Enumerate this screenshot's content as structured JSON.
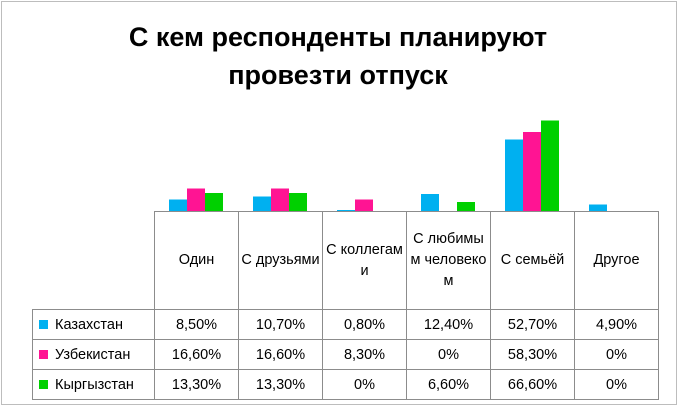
{
  "chart_data": {
    "type": "bar",
    "title_lines": [
      "С кем респонденты планируют",
      "провезти отпуск"
    ],
    "categories": [
      "Один",
      "С друзьями",
      "С коллегами",
      "С любимым человеком",
      "С семьёй",
      "Другое"
    ],
    "category_display": [
      "Один",
      "С друзьями",
      "С коллегам и",
      "С любимым человеко м",
      "С семьёй",
      "Другое"
    ],
    "series": [
      {
        "name": "Казахстан",
        "color": "#00b0f0",
        "values": [
          8.5,
          10.7,
          0.8,
          12.4,
          52.7,
          4.9
        ],
        "labels": [
          "8,50%",
          "10,70%",
          "0,80%",
          "12,40%",
          "52,70%",
          "4,90%"
        ]
      },
      {
        "name": "Узбекистан",
        "color": "#ff1493",
        "values": [
          16.6,
          16.6,
          8.3,
          0,
          58.3,
          0
        ],
        "labels": [
          "16,60%",
          "16,60%",
          "8,30%",
          "0%",
          "58,30%",
          "0%"
        ]
      },
      {
        "name": "Кыргызстан",
        "color": "#00d000",
        "values": [
          13.3,
          13.3,
          0,
          6.6,
          66.6,
          0
        ],
        "labels": [
          "13,30%",
          "13,30%",
          "0%",
          "6,60%",
          "66,60%",
          "0%"
        ]
      }
    ],
    "ylim": [
      0,
      70
    ],
    "grid": false,
    "legend": "data-table"
  }
}
